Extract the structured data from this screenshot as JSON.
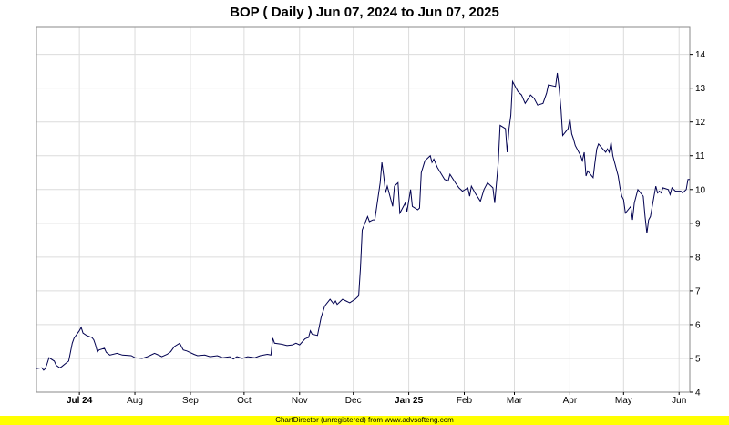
{
  "chart_data": {
    "type": "line",
    "title": "BOP ( Daily ) Jun 07, 2024 to Jun 07, 2025",
    "xlabel": "",
    "ylabel": "",
    "ylim": [
      4,
      14.8
    ],
    "grid": true,
    "y_axis_position": "right",
    "y_ticks": [
      4,
      5,
      6,
      7,
      8,
      9,
      10,
      11,
      12,
      13,
      14
    ],
    "x_ticks": [
      {
        "date": "2024-07-01",
        "label": "Jul 24",
        "bold": true
      },
      {
        "date": "2024-08-01",
        "label": "Aug",
        "bold": false
      },
      {
        "date": "2024-09-01",
        "label": "Sep",
        "bold": false
      },
      {
        "date": "2024-10-01",
        "label": "Oct",
        "bold": false
      },
      {
        "date": "2024-11-01",
        "label": "Nov",
        "bold": false
      },
      {
        "date": "2024-12-01",
        "label": "Dec",
        "bold": false
      },
      {
        "date": "2025-01-01",
        "label": "Jan 25",
        "bold": true
      },
      {
        "date": "2025-02-01",
        "label": "Feb",
        "bold": false
      },
      {
        "date": "2025-03-01",
        "label": "Mar",
        "bold": false
      },
      {
        "date": "2025-04-01",
        "label": "Apr",
        "bold": false
      },
      {
        "date": "2025-05-01",
        "label": "May",
        "bold": false
      },
      {
        "date": "2025-06-01",
        "label": "Jun",
        "bold": false
      }
    ],
    "x_range": [
      "2024-06-07",
      "2025-06-07"
    ],
    "series": [
      {
        "color": "#000050",
        "points": [
          [
            "2024-06-07",
            4.7
          ],
          [
            "2024-06-10",
            4.72
          ],
          [
            "2024-06-11",
            4.65
          ],
          [
            "2024-06-12",
            4.7
          ],
          [
            "2024-06-13",
            4.85
          ],
          [
            "2024-06-14",
            5.02
          ],
          [
            "2024-06-17",
            4.92
          ],
          [
            "2024-06-18",
            4.8
          ],
          [
            "2024-06-20",
            4.72
          ],
          [
            "2024-06-21",
            4.75
          ],
          [
            "2024-06-24",
            4.88
          ],
          [
            "2024-06-25",
            4.92
          ],
          [
            "2024-06-27",
            5.45
          ],
          [
            "2024-06-28",
            5.6
          ],
          [
            "2024-07-01",
            5.82
          ],
          [
            "2024-07-02",
            5.92
          ],
          [
            "2024-07-03",
            5.75
          ],
          [
            "2024-07-05",
            5.68
          ],
          [
            "2024-07-08",
            5.62
          ],
          [
            "2024-07-09",
            5.55
          ],
          [
            "2024-07-10",
            5.4
          ],
          [
            "2024-07-11",
            5.2
          ],
          [
            "2024-07-12",
            5.25
          ],
          [
            "2024-07-15",
            5.3
          ],
          [
            "2024-07-16",
            5.18
          ],
          [
            "2024-07-18",
            5.1
          ],
          [
            "2024-07-22",
            5.15
          ],
          [
            "2024-07-25",
            5.1
          ],
          [
            "2024-07-30",
            5.08
          ],
          [
            "2024-08-01",
            5.02
          ],
          [
            "2024-08-05",
            5.0
          ],
          [
            "2024-08-08",
            5.05
          ],
          [
            "2024-08-12",
            5.15
          ],
          [
            "2024-08-15",
            5.08
          ],
          [
            "2024-08-16",
            5.05
          ],
          [
            "2024-08-19",
            5.12
          ],
          [
            "2024-08-21",
            5.2
          ],
          [
            "2024-08-23",
            5.35
          ],
          [
            "2024-08-26",
            5.45
          ],
          [
            "2024-08-28",
            5.25
          ],
          [
            "2024-08-30",
            5.22
          ],
          [
            "2024-09-03",
            5.12
          ],
          [
            "2024-09-05",
            5.08
          ],
          [
            "2024-09-09",
            5.1
          ],
          [
            "2024-09-12",
            5.05
          ],
          [
            "2024-09-16",
            5.08
          ],
          [
            "2024-09-19",
            5.02
          ],
          [
            "2024-09-23",
            5.05
          ],
          [
            "2024-09-25",
            4.98
          ],
          [
            "2024-09-27",
            5.05
          ],
          [
            "2024-09-30",
            5.0
          ],
          [
            "2024-10-03",
            5.05
          ],
          [
            "2024-10-07",
            5.02
          ],
          [
            "2024-10-10",
            5.08
          ],
          [
            "2024-10-14",
            5.12
          ],
          [
            "2024-10-16",
            5.1
          ],
          [
            "2024-10-17",
            5.6
          ],
          [
            "2024-10-18",
            5.45
          ],
          [
            "2024-10-22",
            5.42
          ],
          [
            "2024-10-25",
            5.38
          ],
          [
            "2024-10-28",
            5.4
          ],
          [
            "2024-10-30",
            5.45
          ],
          [
            "2024-11-01",
            5.4
          ],
          [
            "2024-11-04",
            5.58
          ],
          [
            "2024-11-05",
            5.6
          ],
          [
            "2024-11-06",
            5.62
          ],
          [
            "2024-11-07",
            5.82
          ],
          [
            "2024-11-08",
            5.72
          ],
          [
            "2024-11-11",
            5.68
          ],
          [
            "2024-11-13",
            6.2
          ],
          [
            "2024-11-15",
            6.55
          ],
          [
            "2024-11-18",
            6.75
          ],
          [
            "2024-11-20",
            6.62
          ],
          [
            "2024-11-21",
            6.7
          ],
          [
            "2024-11-22",
            6.6
          ],
          [
            "2024-11-25",
            6.75
          ],
          [
            "2024-11-27",
            6.7
          ],
          [
            "2024-11-29",
            6.65
          ],
          [
            "2024-12-02",
            6.75
          ],
          [
            "2024-12-04",
            6.85
          ],
          [
            "2024-12-05",
            7.7
          ],
          [
            "2024-12-06",
            8.8
          ],
          [
            "2024-12-09",
            9.2
          ],
          [
            "2024-12-10",
            9.05
          ],
          [
            "2024-12-12",
            9.1
          ],
          [
            "2024-12-13",
            9.1
          ],
          [
            "2024-12-16",
            10.2
          ],
          [
            "2024-12-17",
            10.8
          ],
          [
            "2024-12-18",
            10.4
          ],
          [
            "2024-12-19",
            9.9
          ],
          [
            "2024-12-20",
            10.1
          ],
          [
            "2024-12-23",
            9.5
          ],
          [
            "2024-12-24",
            10.1
          ],
          [
            "2024-12-26",
            10.2
          ],
          [
            "2024-12-27",
            9.3
          ],
          [
            "2024-12-30",
            9.6
          ],
          [
            "2024-12-31",
            9.35
          ],
          [
            "2025-01-02",
            10.0
          ],
          [
            "2025-01-03",
            9.5
          ],
          [
            "2025-01-06",
            9.4
          ],
          [
            "2025-01-07",
            9.45
          ],
          [
            "2025-01-08",
            10.5
          ],
          [
            "2025-01-10",
            10.85
          ],
          [
            "2025-01-13",
            11.0
          ],
          [
            "2025-01-14",
            10.8
          ],
          [
            "2025-01-15",
            10.9
          ],
          [
            "2025-01-17",
            10.65
          ],
          [
            "2025-01-21",
            10.3
          ],
          [
            "2025-01-23",
            10.25
          ],
          [
            "2025-01-24",
            10.45
          ],
          [
            "2025-01-27",
            10.2
          ],
          [
            "2025-01-29",
            10.05
          ],
          [
            "2025-01-31",
            9.95
          ],
          [
            "2025-02-03",
            10.05
          ],
          [
            "2025-02-04",
            9.8
          ],
          [
            "2025-02-05",
            10.1
          ],
          [
            "2025-02-07",
            9.9
          ],
          [
            "2025-02-10",
            9.65
          ],
          [
            "2025-02-12",
            10.0
          ],
          [
            "2025-02-14",
            10.2
          ],
          [
            "2025-02-17",
            10.05
          ],
          [
            "2025-02-18",
            9.6
          ],
          [
            "2025-02-20",
            10.8
          ],
          [
            "2025-02-21",
            11.9
          ],
          [
            "2025-02-24",
            11.8
          ],
          [
            "2025-02-25",
            11.1
          ],
          [
            "2025-02-26",
            11.8
          ],
          [
            "2025-02-27",
            12.2
          ],
          [
            "2025-02-28",
            13.2
          ],
          [
            "2025-03-03",
            12.9
          ],
          [
            "2025-03-05",
            12.8
          ],
          [
            "2025-03-07",
            12.55
          ],
          [
            "2025-03-10",
            12.8
          ],
          [
            "2025-03-12",
            12.7
          ],
          [
            "2025-03-14",
            12.5
          ],
          [
            "2025-03-17",
            12.55
          ],
          [
            "2025-03-19",
            12.85
          ],
          [
            "2025-03-20",
            13.1
          ],
          [
            "2025-03-24",
            13.05
          ],
          [
            "2025-03-25",
            13.45
          ],
          [
            "2025-03-26",
            13.0
          ],
          [
            "2025-03-27",
            12.4
          ],
          [
            "2025-03-28",
            11.6
          ],
          [
            "2025-03-31",
            11.8
          ],
          [
            "2025-04-01",
            12.1
          ],
          [
            "2025-04-02",
            11.65
          ],
          [
            "2025-04-03",
            11.5
          ],
          [
            "2025-04-04",
            11.3
          ],
          [
            "2025-04-07",
            11.0
          ],
          [
            "2025-04-08",
            10.85
          ],
          [
            "2025-04-09",
            11.1
          ],
          [
            "2025-04-10",
            10.4
          ],
          [
            "2025-04-11",
            10.55
          ],
          [
            "2025-04-14",
            10.35
          ],
          [
            "2025-04-15",
            10.8
          ],
          [
            "2025-04-16",
            11.2
          ],
          [
            "2025-04-17",
            11.35
          ],
          [
            "2025-04-21",
            11.1
          ],
          [
            "2025-04-22",
            11.2
          ],
          [
            "2025-04-23",
            11.1
          ],
          [
            "2025-04-24",
            11.4
          ],
          [
            "2025-04-25",
            11.0
          ],
          [
            "2025-04-28",
            10.4
          ],
          [
            "2025-04-29",
            10.05
          ],
          [
            "2025-04-30",
            9.8
          ],
          [
            "2025-05-01",
            9.7
          ],
          [
            "2025-05-02",
            9.3
          ],
          [
            "2025-05-05",
            9.5
          ],
          [
            "2025-05-06",
            9.1
          ],
          [
            "2025-05-07",
            9.6
          ],
          [
            "2025-05-09",
            10.0
          ],
          [
            "2025-05-12",
            9.8
          ],
          [
            "2025-05-13",
            9.2
          ],
          [
            "2025-05-14",
            8.7
          ],
          [
            "2025-05-15",
            9.1
          ],
          [
            "2025-05-16",
            9.2
          ],
          [
            "2025-05-19",
            10.1
          ],
          [
            "2025-05-20",
            9.9
          ],
          [
            "2025-05-21",
            9.95
          ],
          [
            "2025-05-22",
            9.9
          ],
          [
            "2025-05-23",
            10.05
          ],
          [
            "2025-05-26",
            10.0
          ],
          [
            "2025-05-27",
            9.85
          ],
          [
            "2025-05-28",
            10.05
          ],
          [
            "2025-05-29",
            10.0
          ],
          [
            "2025-05-30",
            9.95
          ],
          [
            "2025-06-02",
            9.95
          ],
          [
            "2025-06-03",
            9.9
          ],
          [
            "2025-06-04",
            9.95
          ],
          [
            "2025-06-05",
            10.0
          ],
          [
            "2025-06-06",
            10.3
          ],
          [
            "2025-06-07",
            10.3
          ]
        ]
      }
    ]
  },
  "footer": {
    "text": "ChartDirector (unregistered) from www.advsofteng.com"
  }
}
